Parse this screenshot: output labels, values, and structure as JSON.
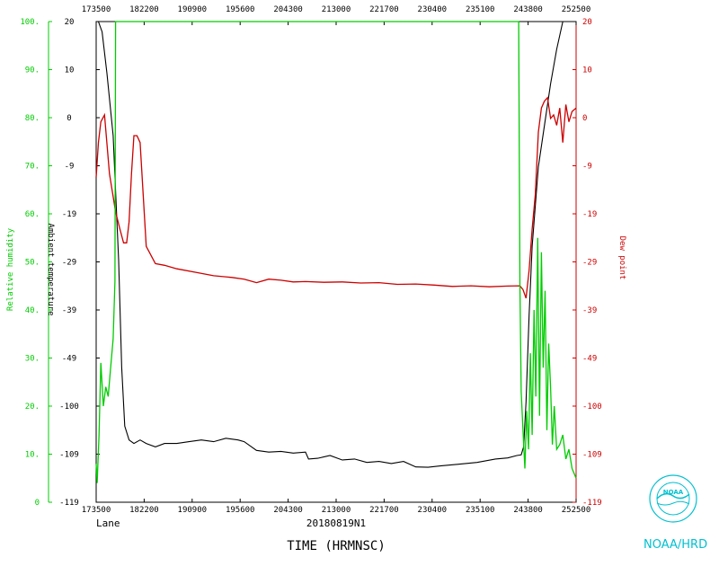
{
  "chart_data": {
    "type": "line",
    "flight": "20180819N1",
    "storm": "Lane",
    "xlabel": "TIME (HRMNSC)",
    "x_ticks": [
      "173500",
      "182200",
      "190900",
      "195600",
      "204300",
      "213000",
      "221700",
      "230400",
      "235100",
      "243800",
      "252500"
    ],
    "left_axis": {
      "label": "Relative humidity",
      "ylim": [
        0,
        100
      ],
      "ticks": [
        "0",
        "10.",
        "20.",
        "30.",
        "40.",
        "50.",
        "60.",
        "70.",
        "80.",
        "90.",
        "100."
      ],
      "color": "#00cc00"
    },
    "inner_left_axis": {
      "label": "Ambient temperature",
      "ylim": [
        -119,
        20
      ],
      "ticks": [
        "-119",
        "-109",
        "-100",
        "-49",
        "-39",
        "-29",
        "-19",
        "-9",
        "0",
        "10",
        "20"
      ],
      "color": "#000000"
    },
    "right_axis": {
      "label": "Dew point",
      "ylim": [
        -119,
        20
      ],
      "ticks": [
        "-119",
        "-109",
        "-100",
        "-49",
        "-39",
        "-29",
        "-19",
        "-9",
        "0",
        "10",
        "20"
      ],
      "color": "#cc0000"
    },
    "x_hours_range": [
      17.5833,
      25.4167
    ],
    "series": [
      {
        "color": "#000000",
        "x": [
          17.5833,
          17.62,
          17.68,
          17.76,
          17.86,
          17.95,
          18.0,
          18.05,
          18.12,
          18.2,
          18.3,
          18.4,
          18.55,
          18.7,
          18.9,
          19.1,
          19.3,
          19.5,
          19.7,
          19.9,
          20.0,
          20.2,
          20.4,
          20.6,
          20.8,
          21.0,
          21.05,
          21.2,
          21.4,
          21.6,
          21.8,
          22.0,
          22.2,
          22.4,
          22.6,
          22.8,
          23.0,
          23.2,
          23.5,
          23.8,
          24.1,
          24.3,
          24.45,
          24.52,
          24.56,
          24.6,
          24.65,
          24.7,
          24.8,
          24.9,
          25.0,
          25.1,
          25.2,
          25.3,
          25.4167
        ],
        "y": [
          20,
          20,
          17,
          5,
          -13,
          -49,
          -80,
          -97,
          -101,
          -102,
          -101,
          -102,
          -103,
          -102,
          -102,
          -101.5,
          -101,
          -101.5,
          -100.5,
          -101,
          -101.5,
          -104,
          -104.5,
          -104.3,
          -104.8,
          -104.5,
          -106.5,
          -106.3,
          -105.5,
          -106.8,
          -106.5,
          -107.5,
          -107.2,
          -107.8,
          -107.2,
          -108.8,
          -108.9,
          -108.5,
          -108.0,
          -107.5,
          -106.5,
          -106.2,
          -105.5,
          -105.3,
          -103,
          -90,
          -65,
          -45,
          -22,
          -10,
          2,
          12,
          20,
          20,
          20
        ]
      },
      {
        "color": "#cc0000",
        "x": [
          17.5833,
          17.62,
          17.66,
          17.72,
          17.8,
          17.9,
          17.97,
          18.03,
          18.08,
          18.12,
          18.16,
          18.2,
          18.25,
          18.3,
          18.4,
          18.55,
          18.7,
          18.9,
          19.2,
          19.5,
          19.8,
          20.0,
          20.2,
          20.4,
          20.6,
          20.8,
          21.0,
          21.3,
          21.6,
          21.9,
          22.2,
          22.5,
          22.8,
          23.1,
          23.4,
          23.7,
          24.0,
          24.3,
          24.5,
          24.55,
          24.6,
          24.65,
          24.7,
          24.75,
          24.8,
          24.85,
          24.9,
          24.95,
          25.0,
          25.05,
          25.1,
          25.15,
          25.2,
          25.25,
          25.3,
          25.35,
          25.4167
        ],
        "y": [
          -25,
          -15,
          -9,
          -7,
          -24,
          -35,
          -40,
          -44,
          -44,
          -38,
          -24,
          -13,
          -13,
          -15,
          -45,
          -50,
          -50.5,
          -51.5,
          -52.5,
          -53.5,
          -54,
          -54.5,
          -55.5,
          -54.5,
          -54.8,
          -55.3,
          -55.2,
          -55.4,
          -55.3,
          -55.6,
          -55.5,
          -56.0,
          -55.9,
          -56.2,
          -56.6,
          -56.4,
          -56.7,
          -56.5,
          -56.4,
          -57.5,
          -60,
          -52,
          -40,
          -30,
          -12,
          -5,
          -3,
          -2,
          -8,
          -7,
          -10,
          -5,
          -15,
          -4,
          -9,
          -6,
          -5
        ]
      },
      {
        "color": "#00cc00",
        "x": [
          17.5833,
          17.6,
          17.63,
          17.66,
          17.7,
          17.74,
          17.78,
          17.82,
          17.86,
          17.89,
          17.9,
          17.95,
          24.48,
          24.5,
          24.52,
          24.55,
          24.58,
          24.61,
          24.64,
          24.67,
          24.7,
          24.73,
          24.76,
          24.79,
          24.82,
          24.85,
          24.88,
          24.91,
          24.94,
          24.97,
          25.0,
          25.03,
          25.06,
          25.1,
          25.15,
          25.2,
          25.25,
          25.3,
          25.35,
          25.4167
        ],
        "y": [
          8,
          4,
          14,
          29,
          20,
          24,
          22,
          28,
          34,
          46,
          100,
          100,
          100,
          45,
          23,
          15,
          7,
          19,
          11,
          31,
          14,
          40,
          22,
          55,
          18,
          52,
          28,
          44,
          15,
          33,
          24,
          12,
          20,
          11,
          12,
          14,
          9,
          11,
          7,
          5
        ]
      }
    ]
  },
  "logo": {
    "text": "NOAA/HRD",
    "emblem_text": "NOAA"
  },
  "colors": {
    "rh": "#00cc00",
    "temp": "#000000",
    "dew": "#cc0000",
    "logo": "#00c0d0"
  }
}
